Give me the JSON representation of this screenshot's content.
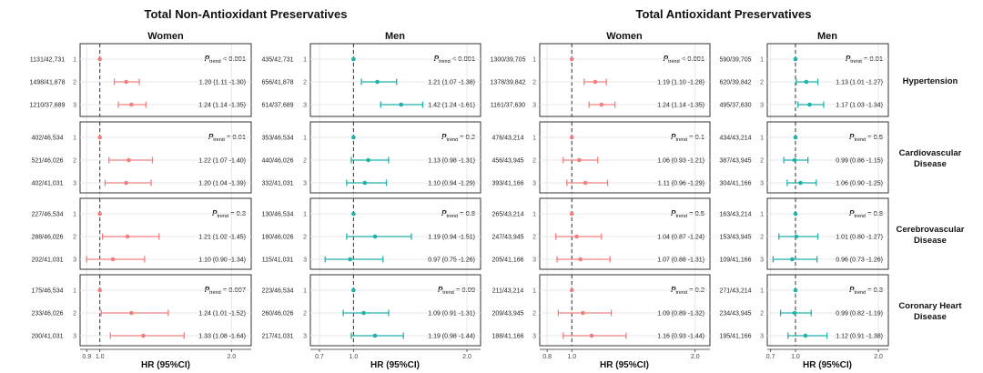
{
  "titles": {
    "left": "Total Non-Antioxidant Preservatives",
    "right": "Total Antioxidant Preservatives"
  },
  "panel_titles": [
    "Women",
    "Men",
    "Women",
    "Men"
  ],
  "x_axis_label": "HR (95%CI)",
  "ptrend_prefix": "P",
  "ptrend_sub": "trend",
  "outcomes": [
    "Hypertension",
    "Cardiovascular Disease",
    "Cerebrovascular Disease",
    "Coronary Heart Disease"
  ],
  "colors": {
    "women": "#f08080",
    "men": "#20b2aa",
    "refline": "#333333",
    "grid": "#e8e8e8"
  },
  "chart_data": [
    {
      "type": "forest",
      "title": "Total Non-Antioxidant Preservatives",
      "subtitle": "Women",
      "color": "#f08080",
      "xlim": [
        0.85,
        2.15
      ],
      "ticks": [
        0.9,
        1.0,
        2.0
      ],
      "tick_labels": [
        "0.9",
        "1.0",
        "2.0"
      ],
      "groups": [
        {
          "outcome": "Hypertension",
          "ptrend": "< 0.001",
          "rows": [
            {
              "n": "1131/42,731",
              "level": "1",
              "hr": 1.0,
              "lo": 1.0,
              "hi": 1.0,
              "label": ""
            },
            {
              "n": "1498/41,878",
              "level": "2",
              "hr": 1.2,
              "lo": 1.11,
              "hi": 1.3,
              "label": "1.20 (1.11 -1.30)"
            },
            {
              "n": "1210/37,689",
              "level": "3",
              "hr": 1.24,
              "lo": 1.14,
              "hi": 1.35,
              "label": "1.24 (1.14 -1.35)"
            }
          ]
        },
        {
          "outcome": "Cardiovascular Disease",
          "ptrend": "= 0.01",
          "rows": [
            {
              "n": "402/46,534",
              "level": "1",
              "hr": 1.0,
              "lo": 1.0,
              "hi": 1.0,
              "label": ""
            },
            {
              "n": "521/46,026",
              "level": "2",
              "hr": 1.22,
              "lo": 1.07,
              "hi": 1.4,
              "label": "1.22 (1.07 -1.40)"
            },
            {
              "n": "402/41,031",
              "level": "3",
              "hr": 1.2,
              "lo": 1.04,
              "hi": 1.39,
              "label": "1.20 (1.04 -1.39)"
            }
          ]
        },
        {
          "outcome": "Cerebrovascular Disease",
          "ptrend": "= 0.3",
          "rows": [
            {
              "n": "227/46,534",
              "level": "1",
              "hr": 1.0,
              "lo": 1.0,
              "hi": 1.0,
              "label": ""
            },
            {
              "n": "288/46,026",
              "level": "2",
              "hr": 1.21,
              "lo": 1.02,
              "hi": 1.45,
              "label": "1.21 (1.02 -1.45)"
            },
            {
              "n": "202/41,031",
              "level": "3",
              "hr": 1.1,
              "lo": 0.9,
              "hi": 1.34,
              "label": "1.10 (0.90 -1.34)"
            }
          ]
        },
        {
          "outcome": "Coronary Heart Disease",
          "ptrend": "= 0.007",
          "rows": [
            {
              "n": "175/46,534",
              "level": "1",
              "hr": 1.0,
              "lo": 1.0,
              "hi": 1.0,
              "label": ""
            },
            {
              "n": "233/46,026",
              "level": "2",
              "hr": 1.24,
              "lo": 1.01,
              "hi": 1.52,
              "label": "1.24 (1.01 -1.52)"
            },
            {
              "n": "200/41,031",
              "level": "3",
              "hr": 1.33,
              "lo": 1.08,
              "hi": 1.64,
              "label": "1.33 (1.08 -1.64)"
            }
          ]
        }
      ]
    },
    {
      "type": "forest",
      "title": "Total Non-Antioxidant Preservatives",
      "subtitle": "Men",
      "color": "#20b2aa",
      "xlim": [
        0.62,
        2.12
      ],
      "ticks": [
        0.7,
        1.0,
        2.0
      ],
      "tick_labels": [
        "0.7",
        "1.0",
        "2.0"
      ],
      "groups": [
        {
          "outcome": "Hypertension",
          "ptrend": "< 0.001",
          "rows": [
            {
              "n": "435/42,731",
              "level": "1",
              "hr": 1.0,
              "lo": 1.0,
              "hi": 1.0,
              "label": ""
            },
            {
              "n": "656/41,878",
              "level": "2",
              "hr": 1.21,
              "lo": 1.07,
              "hi": 1.38,
              "label": "1.21 (1.07 -1.38)"
            },
            {
              "n": "614/37,689",
              "level": "3",
              "hr": 1.42,
              "lo": 1.24,
              "hi": 1.61,
              "label": "1.42 (1.24 -1.61)"
            }
          ]
        },
        {
          "outcome": "Cardiovascular Disease",
          "ptrend": "= 0.2",
          "rows": [
            {
              "n": "353/46,534",
              "level": "1",
              "hr": 1.0,
              "lo": 1.0,
              "hi": 1.0,
              "label": ""
            },
            {
              "n": "440/46,026",
              "level": "2",
              "hr": 1.13,
              "lo": 0.98,
              "hi": 1.31,
              "label": "1.13 (0.98 -1.31)"
            },
            {
              "n": "332/41,031",
              "level": "3",
              "hr": 1.1,
              "lo": 0.94,
              "hi": 1.29,
              "label": "1.10 (0.94 -1.29)"
            }
          ]
        },
        {
          "outcome": "Cerebrovascular Disease",
          "ptrend": "= 0.8",
          "rows": [
            {
              "n": "130/46,534",
              "level": "1",
              "hr": 1.0,
              "lo": 1.0,
              "hi": 1.0,
              "label": ""
            },
            {
              "n": "180/46,026",
              "level": "2",
              "hr": 1.19,
              "lo": 0.94,
              "hi": 1.51,
              "label": "1.19 (0.94 -1.51)"
            },
            {
              "n": "115/41,031",
              "level": "3",
              "hr": 0.97,
              "lo": 0.75,
              "hi": 1.26,
              "label": "0.97 (0.75 -1.26)"
            }
          ]
        },
        {
          "outcome": "Coronary Heart Disease",
          "ptrend": "= 0.09",
          "rows": [
            {
              "n": "223/46,534",
              "level": "1",
              "hr": 1.0,
              "lo": 1.0,
              "hi": 1.0,
              "label": ""
            },
            {
              "n": "260/46,026",
              "level": "2",
              "hr": 1.09,
              "lo": 0.91,
              "hi": 1.31,
              "label": "1.09 (0.91 -1.31)"
            },
            {
              "n": "217/41,031",
              "level": "3",
              "hr": 1.19,
              "lo": 0.98,
              "hi": 1.44,
              "label": "1.19 (0.98 -1.44)"
            }
          ]
        }
      ]
    },
    {
      "type": "forest",
      "title": "Total Antioxidant Preservatives",
      "subtitle": "Women",
      "color": "#f08080",
      "xlim": [
        0.74,
        2.12
      ],
      "ticks": [
        0.8,
        1.0,
        2.0
      ],
      "tick_labels": [
        "0.8",
        "1.0",
        "2.0"
      ],
      "groups": [
        {
          "outcome": "Hypertension",
          "ptrend": "< 0.001",
          "rows": [
            {
              "n": "1300/39,705",
              "level": "1",
              "hr": 1.0,
              "lo": 1.0,
              "hi": 1.0,
              "label": ""
            },
            {
              "n": "1378/39,842",
              "level": "2",
              "hr": 1.19,
              "lo": 1.1,
              "hi": 1.28,
              "label": "1.19 (1.10 -1.28)"
            },
            {
              "n": "1161/37,630",
              "level": "3",
              "hr": 1.24,
              "lo": 1.14,
              "hi": 1.35,
              "label": "1.24 (1.14 -1.35)"
            }
          ]
        },
        {
          "outcome": "Cardiovascular Disease",
          "ptrend": "= 0.1",
          "rows": [
            {
              "n": "476/43,214",
              "level": "1",
              "hr": 1.0,
              "lo": 1.0,
              "hi": 1.0,
              "label": ""
            },
            {
              "n": "456/43,945",
              "level": "2",
              "hr": 1.06,
              "lo": 0.93,
              "hi": 1.21,
              "label": "1.06 (0.93 -1.21)"
            },
            {
              "n": "393/41,166",
              "level": "3",
              "hr": 1.11,
              "lo": 0.96,
              "hi": 1.29,
              "label": "1.11 (0.96 -1.29)"
            }
          ]
        },
        {
          "outcome": "Cerebrovascular Disease",
          "ptrend": "= 0.5",
          "rows": [
            {
              "n": "265/43,214",
              "level": "1",
              "hr": 1.0,
              "lo": 1.0,
              "hi": 1.0,
              "label": ""
            },
            {
              "n": "247/43,945",
              "level": "2",
              "hr": 1.04,
              "lo": 0.87,
              "hi": 1.24,
              "label": "1.04 (0.87 -1.24)"
            },
            {
              "n": "205/41,166",
              "level": "3",
              "hr": 1.07,
              "lo": 0.88,
              "hi": 1.31,
              "label": "1.07 (0.88 -1.31)"
            }
          ]
        },
        {
          "outcome": "Coronary Heart Disease",
          "ptrend": "= 0.2",
          "rows": [
            {
              "n": "211/43,214",
              "level": "1",
              "hr": 1.0,
              "lo": 1.0,
              "hi": 1.0,
              "label": ""
            },
            {
              "n": "209/43,945",
              "level": "2",
              "hr": 1.09,
              "lo": 0.89,
              "hi": 1.32,
              "label": "1.09 (0.89 -1.32)"
            },
            {
              "n": "188/41,166",
              "level": "3",
              "hr": 1.16,
              "lo": 0.93,
              "hi": 1.44,
              "label": "1.16 (0.93 -1.44)"
            }
          ]
        }
      ]
    },
    {
      "type": "forest",
      "title": "Total Antioxidant Preservatives",
      "subtitle": "Men",
      "color": "#20b2aa",
      "xlim": [
        0.66,
        2.12
      ],
      "ticks": [
        0.7,
        1.0,
        2.0
      ],
      "tick_labels": [
        "0.7",
        "1.0",
        "2.0"
      ],
      "groups": [
        {
          "outcome": "Hypertension",
          "ptrend": "= 0.01",
          "rows": [
            {
              "n": "590/39,705",
              "level": "1",
              "hr": 1.0,
              "lo": 1.0,
              "hi": 1.0,
              "label": ""
            },
            {
              "n": "620/39,842",
              "level": "2",
              "hr": 1.13,
              "lo": 1.01,
              "hi": 1.27,
              "label": "1.13 (1.01 -1.27)"
            },
            {
              "n": "495/37,630",
              "level": "3",
              "hr": 1.17,
              "lo": 1.03,
              "hi": 1.34,
              "label": "1.17 (1.03 -1.34)"
            }
          ]
        },
        {
          "outcome": "Cardiovascular Disease",
          "ptrend": "= 0.5",
          "rows": [
            {
              "n": "434/43,214",
              "level": "1",
              "hr": 1.0,
              "lo": 1.0,
              "hi": 1.0,
              "label": ""
            },
            {
              "n": "387/43,945",
              "level": "2",
              "hr": 0.99,
              "lo": 0.86,
              "hi": 1.15,
              "label": "0.99 (0.86 -1.15)"
            },
            {
              "n": "304/41,166",
              "level": "3",
              "hr": 1.06,
              "lo": 0.9,
              "hi": 1.25,
              "label": "1.06 (0.90 -1.25)"
            }
          ]
        },
        {
          "outcome": "Cerebrovascular Disease",
          "ptrend": "= 0.8",
          "rows": [
            {
              "n": "163/43,214",
              "level": "1",
              "hr": 1.0,
              "lo": 1.0,
              "hi": 1.0,
              "label": ""
            },
            {
              "n": "153/43,945",
              "level": "2",
              "hr": 1.01,
              "lo": 0.8,
              "hi": 1.27,
              "label": "1.01 (0.80 -1.27)"
            },
            {
              "n": "109/41,166",
              "level": "3",
              "hr": 0.96,
              "lo": 0.73,
              "hi": 1.26,
              "label": "0.96 (0.73 -1.26)"
            }
          ]
        },
        {
          "outcome": "Coronary Heart Disease",
          "ptrend": "= 0.3",
          "rows": [
            {
              "n": "271/43,214",
              "level": "1",
              "hr": 1.0,
              "lo": 1.0,
              "hi": 1.0,
              "label": ""
            },
            {
              "n": "234/43,945",
              "level": "2",
              "hr": 0.99,
              "lo": 0.82,
              "hi": 1.19,
              "label": "0.99 (0.82 -1.19)"
            },
            {
              "n": "195/41,166",
              "level": "3",
              "hr": 1.12,
              "lo": 0.91,
              "hi": 1.38,
              "label": "1.12 (0.91 -1.38)"
            }
          ]
        }
      ]
    }
  ]
}
